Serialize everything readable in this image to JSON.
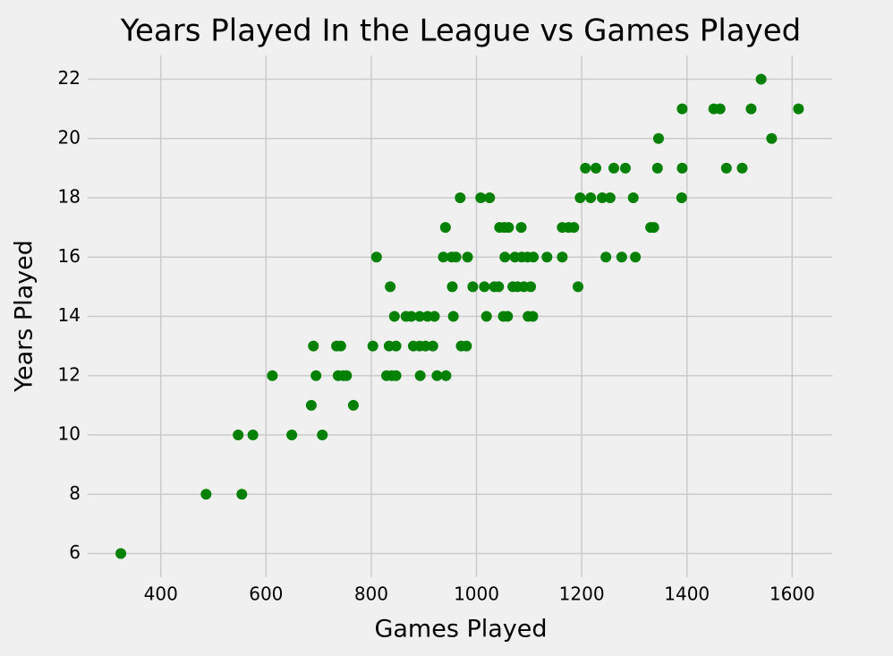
{
  "chart_data": {
    "type": "scatter",
    "title": "Years Played In the League vs Games Played",
    "x_label": "Games Played",
    "y_label": "Years Played",
    "color": "#008000",
    "grid": true,
    "xlim": [
      261,
      1676
    ],
    "ylim": [
      5.2,
      22.8
    ],
    "xticks": [
      400,
      600,
      800,
      1000,
      1200,
      1400,
      1600
    ],
    "yticks": [
      6,
      8,
      10,
      12,
      14,
      16,
      18,
      20,
      22
    ],
    "x": [
      1541,
      1391,
      1451,
      1463,
      1522,
      1612,
      1346,
      1561,
      1207,
      1227,
      1261,
      1283,
      1344,
      1391,
      1475,
      1505,
      969,
      1008,
      1025,
      1197,
      1217,
      1239,
      1254,
      1298,
      1390,
      941,
      1044,
      1053,
      1061,
      1085,
      1163,
      1175,
      1185,
      1331,
      1337,
      810,
      937,
      953,
      961,
      983,
      1054,
      1073,
      1086,
      1097,
      1108,
      1134,
      1163,
      1246,
      1276,
      1302,
      836,
      954,
      993,
      1015,
      1034,
      1042,
      1069,
      1078,
      1090,
      1103,
      1193,
      844,
      866,
      876,
      892,
      907,
      920,
      956,
      1019,
      1051,
      1059,
      1098,
      1107,
      690,
      734,
      742,
      803,
      834,
      847,
      880,
      892,
      903,
      917,
      971,
      981,
      612,
      695,
      737,
      747,
      753,
      829,
      839,
      847,
      893,
      925,
      942,
      686,
      766,
      547,
      575,
      649,
      707,
      486,
      554,
      324
    ],
    "y": [
      22,
      21,
      21,
      21,
      21,
      21,
      20,
      20,
      19,
      19,
      19,
      19,
      19,
      19,
      19,
      19,
      18,
      18,
      18,
      18,
      18,
      18,
      18,
      18,
      18,
      17,
      17,
      17,
      17,
      17,
      17,
      17,
      17,
      17,
      17,
      16,
      16,
      16,
      16,
      16,
      16,
      16,
      16,
      16,
      16,
      16,
      16,
      16,
      16,
      16,
      15,
      15,
      15,
      15,
      15,
      15,
      15,
      15,
      15,
      15,
      15,
      14,
      14,
      14,
      14,
      14,
      14,
      14,
      14,
      14,
      14,
      14,
      14,
      13,
      13,
      13,
      13,
      13,
      13,
      13,
      13,
      13,
      13,
      13,
      13,
      12,
      12,
      12,
      12,
      12,
      12,
      12,
      12,
      12,
      12,
      12,
      11,
      11,
      10,
      10,
      10,
      10,
      8,
      8,
      6
    ]
  }
}
